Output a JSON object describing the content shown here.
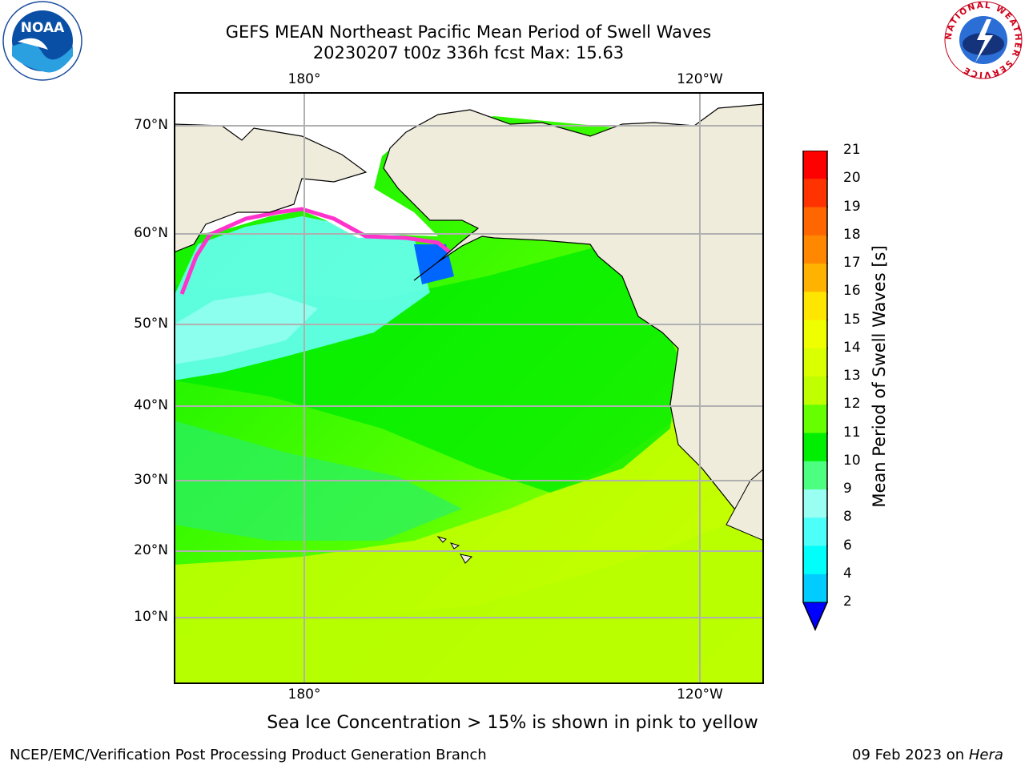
{
  "header": {
    "title_line1": "GEFS MEAN Northeast Pacific Mean Period of Swell Waves",
    "title_line2": "20230207 t00z 336h fcst   Max: 15.63"
  },
  "map": {
    "lon_labels": [
      "180°",
      "120°W"
    ],
    "lat_labels": [
      "70°N",
      "60°N",
      "50°N",
      "40°N",
      "30°N",
      "20°N",
      "10°N"
    ],
    "colors": {
      "land": "#efecdc",
      "ice_white": "#ffffff",
      "grid": "#b0b0b0"
    }
  },
  "colorbar": {
    "title": "Mean Period of Swell Waves [s]",
    "ticks": [
      "21",
      "20",
      "19",
      "18",
      "17",
      "16",
      "15",
      "14",
      "13",
      "12",
      "11",
      "10",
      "9",
      "8",
      "6",
      "4",
      "2"
    ],
    "colors": [
      "#ff0000",
      "#ff3300",
      "#ff6600",
      "#ff8800",
      "#ffb300",
      "#ffe600",
      "#f0ff00",
      "#d9ff00",
      "#bfff00",
      "#66ff00",
      "#00ee00",
      "#4dff80",
      "#99fff2",
      "#4dfff9",
      "#00fffa",
      "#00ccff",
      "#0066ff"
    ],
    "extend_color": "#0000ff"
  },
  "note": "Sea Ice Concentration > 15% is shown in pink to yellow",
  "footer": {
    "left": "NCEP/EMC/Verification Post Processing Product Generation Branch",
    "date": "09 Feb 2023 on ",
    "host": "Hera"
  },
  "logos": {
    "noaa_text": "NOAA",
    "nws_text": "NATIONAL WEATHER SERVICE"
  }
}
